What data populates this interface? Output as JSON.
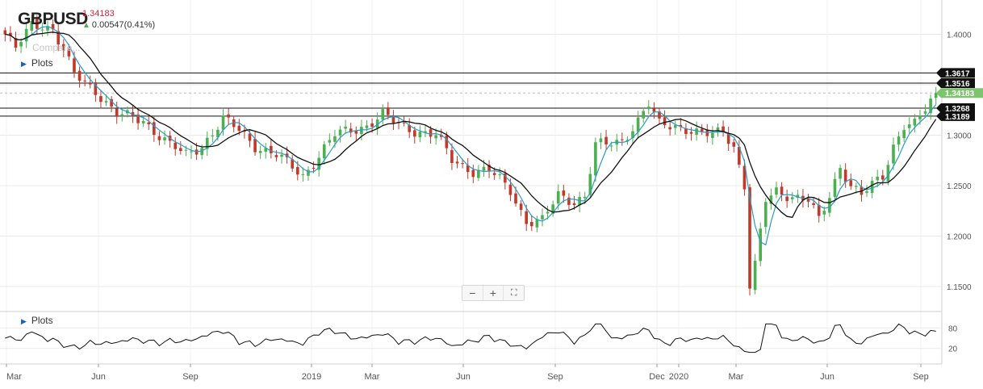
{
  "header": {
    "symbol": "GBPUSD",
    "last_price": "1.34183",
    "change_text": "0.00547(0.41%)",
    "change_direction": "up",
    "indicator_label_faded": "Compare...",
    "plots_label": "Plots"
  },
  "lower_panel": {
    "plots_label": "Plots"
  },
  "zoom_controls": {
    "zoom_out": "−",
    "zoom_in": "+",
    "fullscreen": "⛶"
  },
  "colors": {
    "up_candle": "#4caf50",
    "down_candle": "#c0392b",
    "fast_ma": "#2a9cc2",
    "slow_ma": "#111111",
    "last_price_tag": "#7dc46e",
    "grid": "#e8e8e8"
  },
  "chart_data": [
    {
      "type": "candlestick",
      "x_axis": {
        "tick_labels": [
          "Mar",
          "Jun",
          "Sep",
          "2019",
          "Mar",
          "Jun",
          "Sep",
          "Dec",
          "2020",
          "Mar",
          "Jun",
          "Sep"
        ]
      },
      "y_axis": {
        "tick_labels": [
          "1.4000",
          "1.3500",
          "1.3000",
          "1.2500",
          "1.2000",
          "1.1500"
        ],
        "range": [
          1.13,
          1.43
        ]
      },
      "grid": true,
      "horizontal_levels": [
        {
          "value": 1.3617,
          "label": "1.3617",
          "style": "black"
        },
        {
          "value": 1.3516,
          "label": "1.3516",
          "style": "black"
        },
        {
          "value": 1.34183,
          "label": "1.34183",
          "style": "last-price"
        },
        {
          "value": 1.3268,
          "label": "1.3268",
          "style": "black"
        },
        {
          "value": 1.3189,
          "label": "1.3189",
          "style": "black"
        }
      ],
      "series": [
        {
          "kind": "close",
          "key_points": [
            {
              "x": 0,
              "y": 1.4
            },
            {
              "x": 2,
              "y": 1.385
            },
            {
              "x": 5,
              "y": 1.41
            },
            {
              "x": 7,
              "y": 1.41
            },
            {
              "x": 9,
              "y": 1.405
            },
            {
              "x": 13,
              "y": 1.36
            },
            {
              "x": 17,
              "y": 1.345
            },
            {
              "x": 21,
              "y": 1.32
            },
            {
              "x": 26,
              "y": 1.315
            },
            {
              "x": 31,
              "y": 1.29
            },
            {
              "x": 34,
              "y": 1.28
            },
            {
              "x": 37,
              "y": 1.29
            },
            {
              "x": 41,
              "y": 1.315
            },
            {
              "x": 44,
              "y": 1.305
            },
            {
              "x": 47,
              "y": 1.29
            },
            {
              "x": 51,
              "y": 1.28
            },
            {
              "x": 56,
              "y": 1.26
            },
            {
              "x": 59,
              "y": 1.28
            },
            {
              "x": 62,
              "y": 1.3
            },
            {
              "x": 65,
              "y": 1.305
            },
            {
              "x": 68,
              "y": 1.31
            },
            {
              "x": 71,
              "y": 1.32
            },
            {
              "x": 74,
              "y": 1.31
            },
            {
              "x": 77,
              "y": 1.305
            },
            {
              "x": 81,
              "y": 1.3
            },
            {
              "x": 84,
              "y": 1.275
            },
            {
              "x": 88,
              "y": 1.265
            },
            {
              "x": 91,
              "y": 1.265
            },
            {
              "x": 95,
              "y": 1.245
            },
            {
              "x": 98,
              "y": 1.215
            },
            {
              "x": 101,
              "y": 1.215
            },
            {
              "x": 104,
              "y": 1.24
            },
            {
              "x": 107,
              "y": 1.235
            },
            {
              "x": 109,
              "y": 1.24
            },
            {
              "x": 111,
              "y": 1.29
            },
            {
              "x": 113,
              "y": 1.29
            },
            {
              "x": 116,
              "y": 1.295
            },
            {
              "x": 119,
              "y": 1.315
            },
            {
              "x": 121,
              "y": 1.33
            },
            {
              "x": 123,
              "y": 1.31
            },
            {
              "x": 126,
              "y": 1.31
            },
            {
              "x": 129,
              "y": 1.305
            },
            {
              "x": 131,
              "y": 1.3
            },
            {
              "x": 133,
              "y": 1.3
            },
            {
              "x": 135,
              "y": 1.305
            },
            {
              "x": 137,
              "y": 1.29
            },
            {
              "x": 139,
              "y": 1.25
            },
            {
              "x": 140,
              "y": 1.15
            },
            {
              "x": 141,
              "y": 1.17
            },
            {
              "x": 143,
              "y": 1.235
            },
            {
              "x": 145,
              "y": 1.245
            },
            {
              "x": 148,
              "y": 1.24
            },
            {
              "x": 151,
              "y": 1.235
            },
            {
              "x": 153,
              "y": 1.215
            },
            {
              "x": 155,
              "y": 1.24
            },
            {
              "x": 157,
              "y": 1.27
            },
            {
              "x": 159,
              "y": 1.25
            },
            {
              "x": 161,
              "y": 1.24
            },
            {
              "x": 163,
              "y": 1.25
            },
            {
              "x": 165,
              "y": 1.26
            },
            {
              "x": 167,
              "y": 1.29
            },
            {
              "x": 169,
              "y": 1.31
            },
            {
              "x": 171,
              "y": 1.31
            },
            {
              "x": 173,
              "y": 1.325
            },
            {
              "x": 175,
              "y": 1.3418
            }
          ]
        },
        {
          "kind": "sma_fast",
          "name": ""
        },
        {
          "kind": "sma_slow",
          "name": ""
        }
      ]
    },
    {
      "type": "line",
      "panel": "oscillator",
      "y_axis": {
        "tick_labels": [
          "80",
          "20"
        ],
        "range": [
          0,
          100
        ]
      },
      "series": [
        {
          "kind": "rsi",
          "name": ""
        }
      ]
    }
  ]
}
